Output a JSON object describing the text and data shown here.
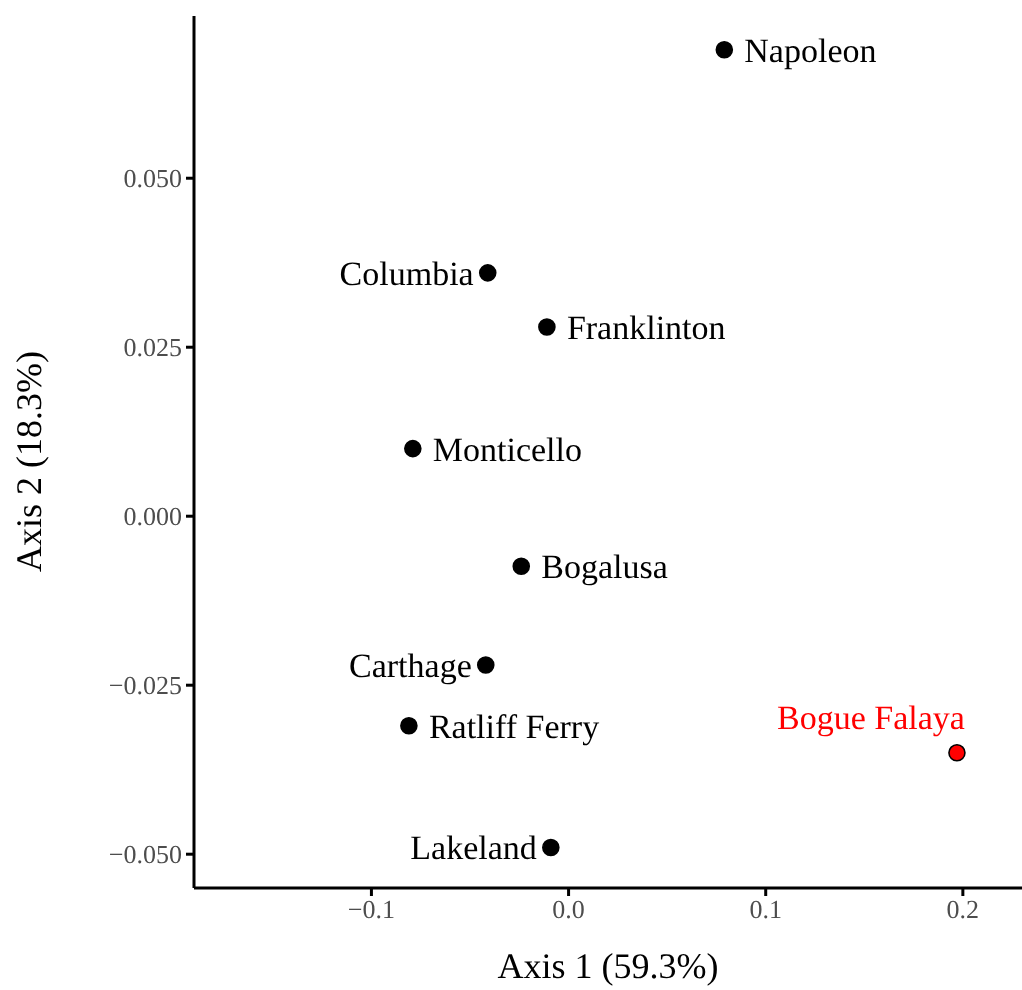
{
  "chart_data": {
    "type": "scatter",
    "xlabel": "Axis 1 (59.3%)",
    "ylabel": "Axis 2 (18.3%)",
    "x": [
      0.079,
      -0.041,
      -0.011,
      -0.079,
      -0.024,
      -0.042,
      -0.081,
      0.197,
      -0.009
    ],
    "values": [
      0.069,
      0.036,
      0.028,
      0.01,
      -0.0074,
      -0.022,
      -0.031,
      -0.035,
      -0.049
    ],
    "colors": [
      "#000000",
      "#000000",
      "#000000",
      "#000000",
      "#000000",
      "#000000",
      "#000000",
      "#ff0000",
      "#000000"
    ],
    "annotations": [
      {
        "text": "Napoleon",
        "x": 0.079,
        "y": 0.069
      },
      {
        "text": "Columbia",
        "x": -0.041,
        "y": 0.036
      },
      {
        "text": "Franklinton",
        "x": -0.011,
        "y": 0.028
      },
      {
        "text": "Monticello",
        "x": -0.079,
        "y": 0.01
      },
      {
        "text": "Bogalusa",
        "x": -0.024,
        "y": -0.0074
      },
      {
        "text": "Carthage",
        "x": -0.042,
        "y": -0.022
      },
      {
        "text": "Ratliff Ferry",
        "x": -0.081,
        "y": -0.031
      },
      {
        "text": "Bogue Falaya",
        "x": 0.197,
        "y": -0.035
      },
      {
        "text": "Lakeland",
        "x": -0.009,
        "y": -0.049
      }
    ],
    "xlim": [
      -0.19,
      0.23
    ],
    "xticks": [
      {
        "value": -0.1,
        "label": "−0.1"
      },
      {
        "value": 0,
        "label": "0.0"
      },
      {
        "value": 0.1,
        "label": "0.1"
      },
      {
        "value": 0.2,
        "label": "0.2"
      }
    ],
    "ylim": [
      -0.055,
      0.074
    ],
    "yticks": [
      {
        "value": -0.05,
        "label": "−0.050"
      },
      {
        "value": -0.025,
        "label": "−0.025"
      },
      {
        "value": 0,
        "label": "0.000"
      },
      {
        "value": 0.025,
        "label": "0.025"
      },
      {
        "value": 0.05,
        "label": "0.050"
      }
    ],
    "marker": "circle",
    "grid": false,
    "legend": false
  }
}
